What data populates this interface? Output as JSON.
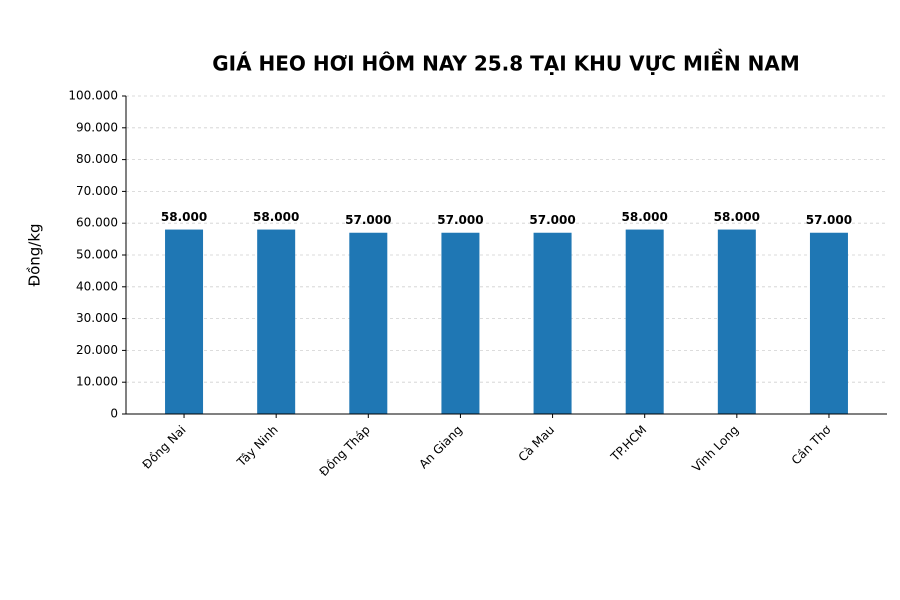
{
  "chart_data": {
    "type": "bar",
    "title": "GIÁ HEO HƠI HÔM NAY 25.8 TẠI KHU VỰC MIỀN NAM",
    "y_label": "Đồng/kg",
    "categories": [
      "Đồng Nai",
      "Tây Ninh",
      "Đồng Tháp",
      "An Giang",
      "Cà Mau",
      "TP.HCM",
      "Vĩnh Long",
      "Cần Thơ"
    ],
    "values": [
      58000,
      58000,
      57000,
      57000,
      57000,
      58000,
      58000,
      57000
    ],
    "value_labels": [
      "58.000",
      "58.000",
      "57.000",
      "57.000",
      "57.000",
      "58.000",
      "58.000",
      "57.000"
    ],
    "color": "#1f77b4",
    "ylim": [
      0,
      100000
    ],
    "yticks": [
      0,
      {
        "value": 10000,
        "label": "10.000"
      },
      {
        "value": 20000,
        "label": "20.000"
      },
      {
        "value": 30000,
        "label": "30.000"
      },
      {
        "value": 40000,
        "label": "40.000"
      },
      {
        "value": 50000,
        "label": "50.000"
      },
      {
        "value": 60000,
        "label": "60.000"
      },
      {
        "value": 70000,
        "label": "70.000"
      },
      {
        "value": 80000,
        "label": "80.000"
      },
      {
        "value": 90000,
        "label": "90.000"
      },
      {
        "value": 100000,
        "label": "100.000"
      }
    ],
    "grid": true
  }
}
